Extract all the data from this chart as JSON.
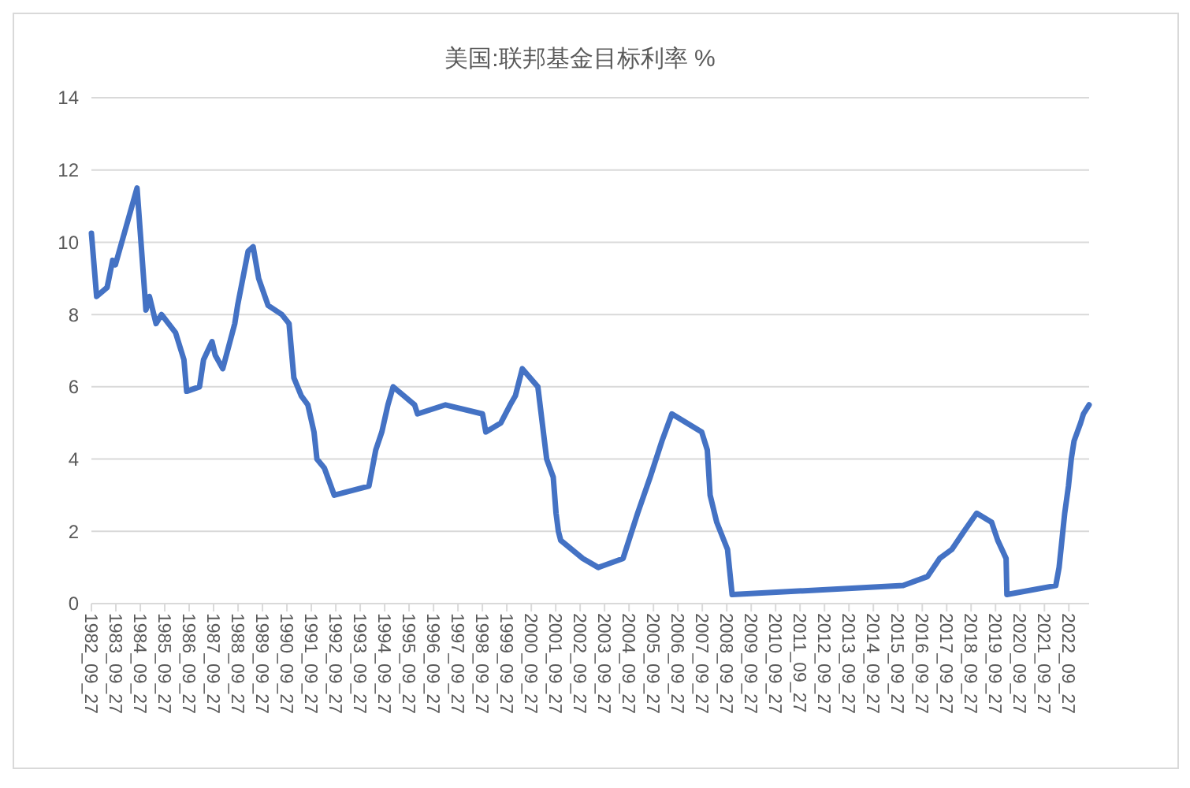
{
  "chart_data": {
    "type": "line",
    "title": "美国:联邦基金目标利率 %",
    "x": [
      "1982-09-27",
      "1982-12-14",
      "1983-05-20",
      "1983-08-10",
      "1983-09-20",
      "1984-08-09",
      "1984-12-20",
      "1985-02-10",
      "1985-05-20",
      "1985-08-10",
      "1986-03-07",
      "1986-07-11",
      "1986-08-21",
      "1987-03-01",
      "1987-04-30",
      "1987-09-04",
      "1987-10-22",
      "1988-02-11",
      "1988-08-09",
      "1988-09-20",
      "1989-02-24",
      "1989-05-10",
      "1989-08-01",
      "1989-12-20",
      "1990-07-13",
      "1990-10-29",
      "1991-01-09",
      "1991-04-30",
      "1991-08-06",
      "1991-11-06",
      "1991-12-20",
      "1992-04-09",
      "1992-09-04",
      "1994-02-04",
      "1994-05-17",
      "1994-08-16",
      "1994-11-15",
      "1995-02-01",
      "1995-12-19",
      "1996-01-31",
      "1997-03-25",
      "1998-09-29",
      "1998-11-17",
      "1999-06-30",
      "1999-11-16",
      "2000-02-02",
      "2000-05-16",
      "2001-01-03",
      "2001-05-15",
      "2001-08-21",
      "2001-10-02",
      "2001-11-06",
      "2001-12-11",
      "2002-11-06",
      "2003-06-25",
      "2004-06-30",
      "2005-02-02",
      "2005-08-09",
      "2006-02-01",
      "2006-06-29",
      "2007-09-18",
      "2007-12-11",
      "2008-01-22",
      "2008-04-30",
      "2008-10-08",
      "2008-12-16",
      "2015-12-16",
      "2016-12-14",
      "2017-06-14",
      "2017-12-13",
      "2018-06-13",
      "2018-12-19",
      "2019-07-31",
      "2019-10-30",
      "2020-03-03",
      "2020-03-15",
      "2022-03-16",
      "2022-05-04",
      "2022-06-15",
      "2022-07-27",
      "2022-09-21",
      "2022-11-02",
      "2022-12-14",
      "2023-02-01",
      "2023-03-22",
      "2023-05-03",
      "2023-07-26"
    ],
    "values": [
      10.25,
      8.5,
      8.75,
      9.5,
      9.375,
      11.5,
      8.125,
      8.5,
      7.75,
      8,
      7.5,
      6.75,
      5.875,
      6,
      6.75,
      7.25,
      6.875,
      6.5,
      7.75,
      8.25,
      9.75,
      9.875,
      9,
      8.25,
      8,
      7.75,
      6.25,
      5.75,
      5.5,
      4.75,
      4,
      3.75,
      3,
      3.25,
      4.25,
      4.75,
      5.5,
      6,
      5.5,
      5.25,
      5.5,
      5.25,
      4.75,
      5,
      5.5,
      5.75,
      6.5,
      6,
      4,
      3.5,
      2.5,
      2,
      1.75,
      1.25,
      1,
      1.25,
      2.5,
      3.5,
      4.5,
      5.25,
      4.75,
      4.25,
      3,
      2.25,
      1.5,
      0.25,
      0.5,
      0.75,
      1.25,
      1.5,
      2,
      2.5,
      2.25,
      1.75,
      1.25,
      0.25,
      0.5,
      1,
      1.75,
      2.5,
      3.25,
      4,
      4.5,
      4.75,
      5,
      5.25,
      5.5
    ],
    "color": "#4472c4",
    "xlim": [
      "1982-09-27",
      "2023-07-27"
    ],
    "xticks": [
      {
        "value": "1982-09-27",
        "label": "1982_09_27"
      },
      {
        "value": "1983-09-27",
        "label": "1983_09_27"
      },
      {
        "value": "1984-09-27",
        "label": "1984_09_27"
      },
      {
        "value": "1985-09-27",
        "label": "1985_09_27"
      },
      {
        "value": "1986-09-27",
        "label": "1986_09_27"
      },
      {
        "value": "1987-09-27",
        "label": "1987_09_27"
      },
      {
        "value": "1988-09-27",
        "label": "1988_09_27"
      },
      {
        "value": "1989-09-27",
        "label": "1989_09_27"
      },
      {
        "value": "1990-09-27",
        "label": "1990_09_27"
      },
      {
        "value": "1991-09-27",
        "label": "1991_09_27"
      },
      {
        "value": "1992-09-27",
        "label": "1992_09_27"
      },
      {
        "value": "1993-09-27",
        "label": "1993_09_27"
      },
      {
        "value": "1994-09-27",
        "label": "1994_09_27"
      },
      {
        "value": "1995-09-27",
        "label": "1995_09_27"
      },
      {
        "value": "1996-09-27",
        "label": "1996_09_27"
      },
      {
        "value": "1997-09-27",
        "label": "1997_09_27"
      },
      {
        "value": "1998-09-27",
        "label": "1998_09_27"
      },
      {
        "value": "1999-09-27",
        "label": "1999_09_27"
      },
      {
        "value": "2000-09-27",
        "label": "2000_09_27"
      },
      {
        "value": "2001-09-27",
        "label": "2001_09_27"
      },
      {
        "value": "2002-09-27",
        "label": "2002_09_27"
      },
      {
        "value": "2003-09-27",
        "label": "2003_09_27"
      },
      {
        "value": "2004-09-27",
        "label": "2004_09_27"
      },
      {
        "value": "2005-09-27",
        "label": "2005_09_27"
      },
      {
        "value": "2006-09-27",
        "label": "2006_09_27"
      },
      {
        "value": "2007-09-27",
        "label": "2007_09_27"
      },
      {
        "value": "2008-09-27",
        "label": "2008_09_27"
      },
      {
        "value": "2009-09-27",
        "label": "2009_09_27"
      },
      {
        "value": "2010-09-27",
        "label": "2010_09_27"
      },
      {
        "value": "2011-09-27",
        "label": "2011_09_27"
      },
      {
        "value": "2012-09-27",
        "label": "2012_09_27"
      },
      {
        "value": "2013-09-27",
        "label": "2013_09_27"
      },
      {
        "value": "2014-09-27",
        "label": "2014_09_27"
      },
      {
        "value": "2015-09-27",
        "label": "2015_09_27"
      },
      {
        "value": "2016-09-27",
        "label": "2016_09_27"
      },
      {
        "value": "2017-09-27",
        "label": "2017_09_27"
      },
      {
        "value": "2018-09-27",
        "label": "2018_09_27"
      },
      {
        "value": "2019-09-27",
        "label": "2019_09_27"
      },
      {
        "value": "2020-09-27",
        "label": "2020_09_27"
      },
      {
        "value": "2021-09-27",
        "label": "2021_09_27"
      },
      {
        "value": "2022-09-27",
        "label": "2022_09_27"
      }
    ],
    "ylim": [
      0,
      14
    ],
    "yticks": [
      0,
      2,
      4,
      6,
      8,
      10,
      12,
      14
    ],
    "grid": "y"
  }
}
